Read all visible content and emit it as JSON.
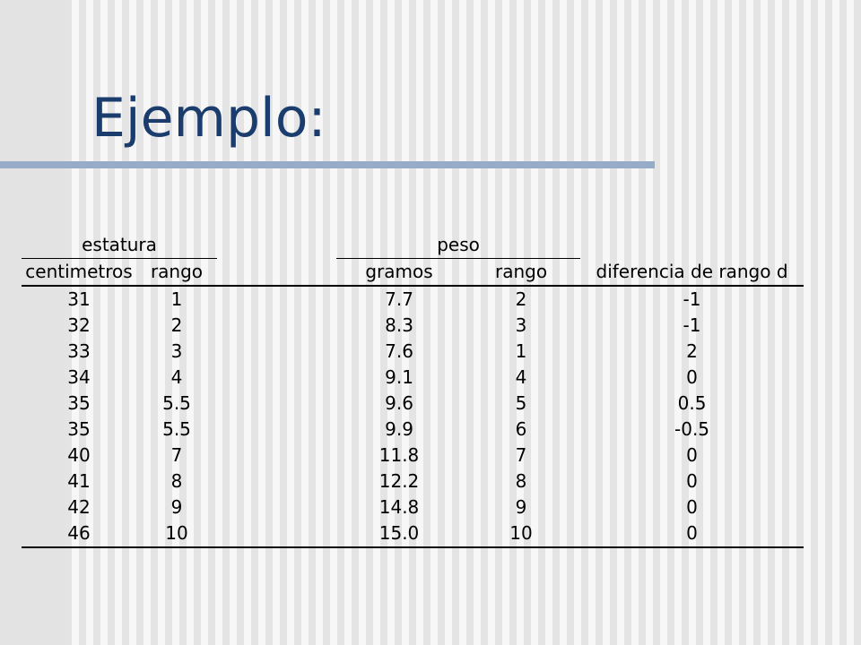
{
  "slide": {
    "title": "Ejemplo:"
  },
  "table": {
    "groups": {
      "estatura": "estatura",
      "peso": "peso"
    },
    "columns": {
      "height_cm": "centimetros",
      "height_rank": "rango",
      "weight_g": "gramos",
      "weight_rank": "rango",
      "rank_diff": "diferencia de rango d"
    },
    "rows": [
      {
        "height_cm": "31",
        "height_rank": "1",
        "weight_g": "7.7",
        "weight_rank": "2",
        "rank_diff": "-1"
      },
      {
        "height_cm": "32",
        "height_rank": "2",
        "weight_g": "8.3",
        "weight_rank": "3",
        "rank_diff": "-1"
      },
      {
        "height_cm": "33",
        "height_rank": "3",
        "weight_g": "7.6",
        "weight_rank": "1",
        "rank_diff": "2"
      },
      {
        "height_cm": "34",
        "height_rank": "4",
        "weight_g": "9.1",
        "weight_rank": "4",
        "rank_diff": "0"
      },
      {
        "height_cm": "35",
        "height_rank": "5.5",
        "weight_g": "9.6",
        "weight_rank": "5",
        "rank_diff": "0.5"
      },
      {
        "height_cm": "35",
        "height_rank": "5.5",
        "weight_g": "9.9",
        "weight_rank": "6",
        "rank_diff": "-0.5"
      },
      {
        "height_cm": "40",
        "height_rank": "7",
        "weight_g": "11.8",
        "weight_rank": "7",
        "rank_diff": "0"
      },
      {
        "height_cm": "41",
        "height_rank": "8",
        "weight_g": "12.2",
        "weight_rank": "8",
        "rank_diff": "0"
      },
      {
        "height_cm": "42",
        "height_rank": "9",
        "weight_g": "14.8",
        "weight_rank": "9",
        "rank_diff": "0"
      },
      {
        "height_cm": "46",
        "height_rank": "10",
        "weight_g": "15.0",
        "weight_rank": "10",
        "rank_diff": "0"
      }
    ]
  },
  "colors": {
    "title": "#1b3d6d",
    "accent_bar": "#97acc6",
    "text": "#000000"
  }
}
